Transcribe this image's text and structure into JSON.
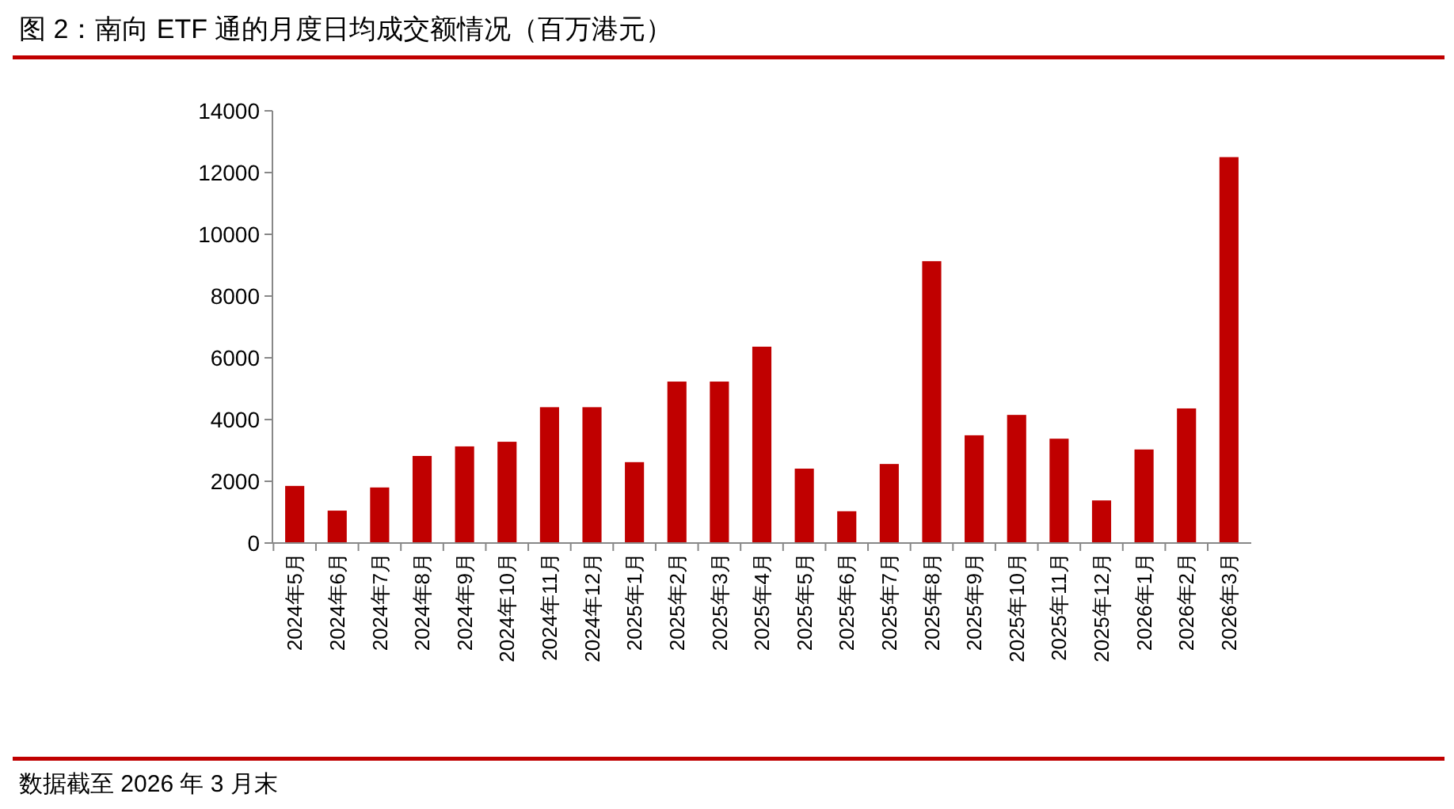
{
  "chart_data": {
    "type": "bar",
    "title": "图 2：南向 ETF 通的月度日均成交额情况（百万港元）",
    "categories": [
      "2024年5月",
      "2024年6月",
      "2024年7月",
      "2024年8月",
      "2024年9月",
      "2024年10月",
      "2024年11月",
      "2024年12月",
      "2025年1月",
      "2025年2月",
      "2025年3月",
      "2025年4月",
      "2025年5月",
      "2025年6月",
      "2025年7月",
      "2025年8月",
      "2025年9月",
      "2025年10月",
      "2025年11月",
      "2025年12月",
      "2026年1月",
      "2026年2月",
      "2026年3月"
    ],
    "values": [
      1850,
      1050,
      1800,
      2820,
      3130,
      3280,
      4400,
      4400,
      2620,
      5230,
      5230,
      6360,
      2410,
      1030,
      2560,
      9130,
      3490,
      4150,
      3380,
      1380,
      3030,
      4360,
      12500
    ],
    "color": "#c00000",
    "ylim": [
      0,
      14000
    ],
    "yticks": [
      0,
      2000,
      4000,
      6000,
      8000,
      10000,
      12000,
      14000
    ],
    "grid": false,
    "annotations": [
      "数据截至 2026 年 3 月末"
    ]
  }
}
